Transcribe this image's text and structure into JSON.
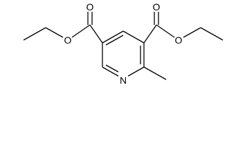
{
  "atoms": [
    {
      "label": "O"
    },
    {
      "label": "O"
    },
    {
      "label": "O"
    },
    {
      "label": "O"
    },
    {
      "label": "N"
    }
  ]
}
